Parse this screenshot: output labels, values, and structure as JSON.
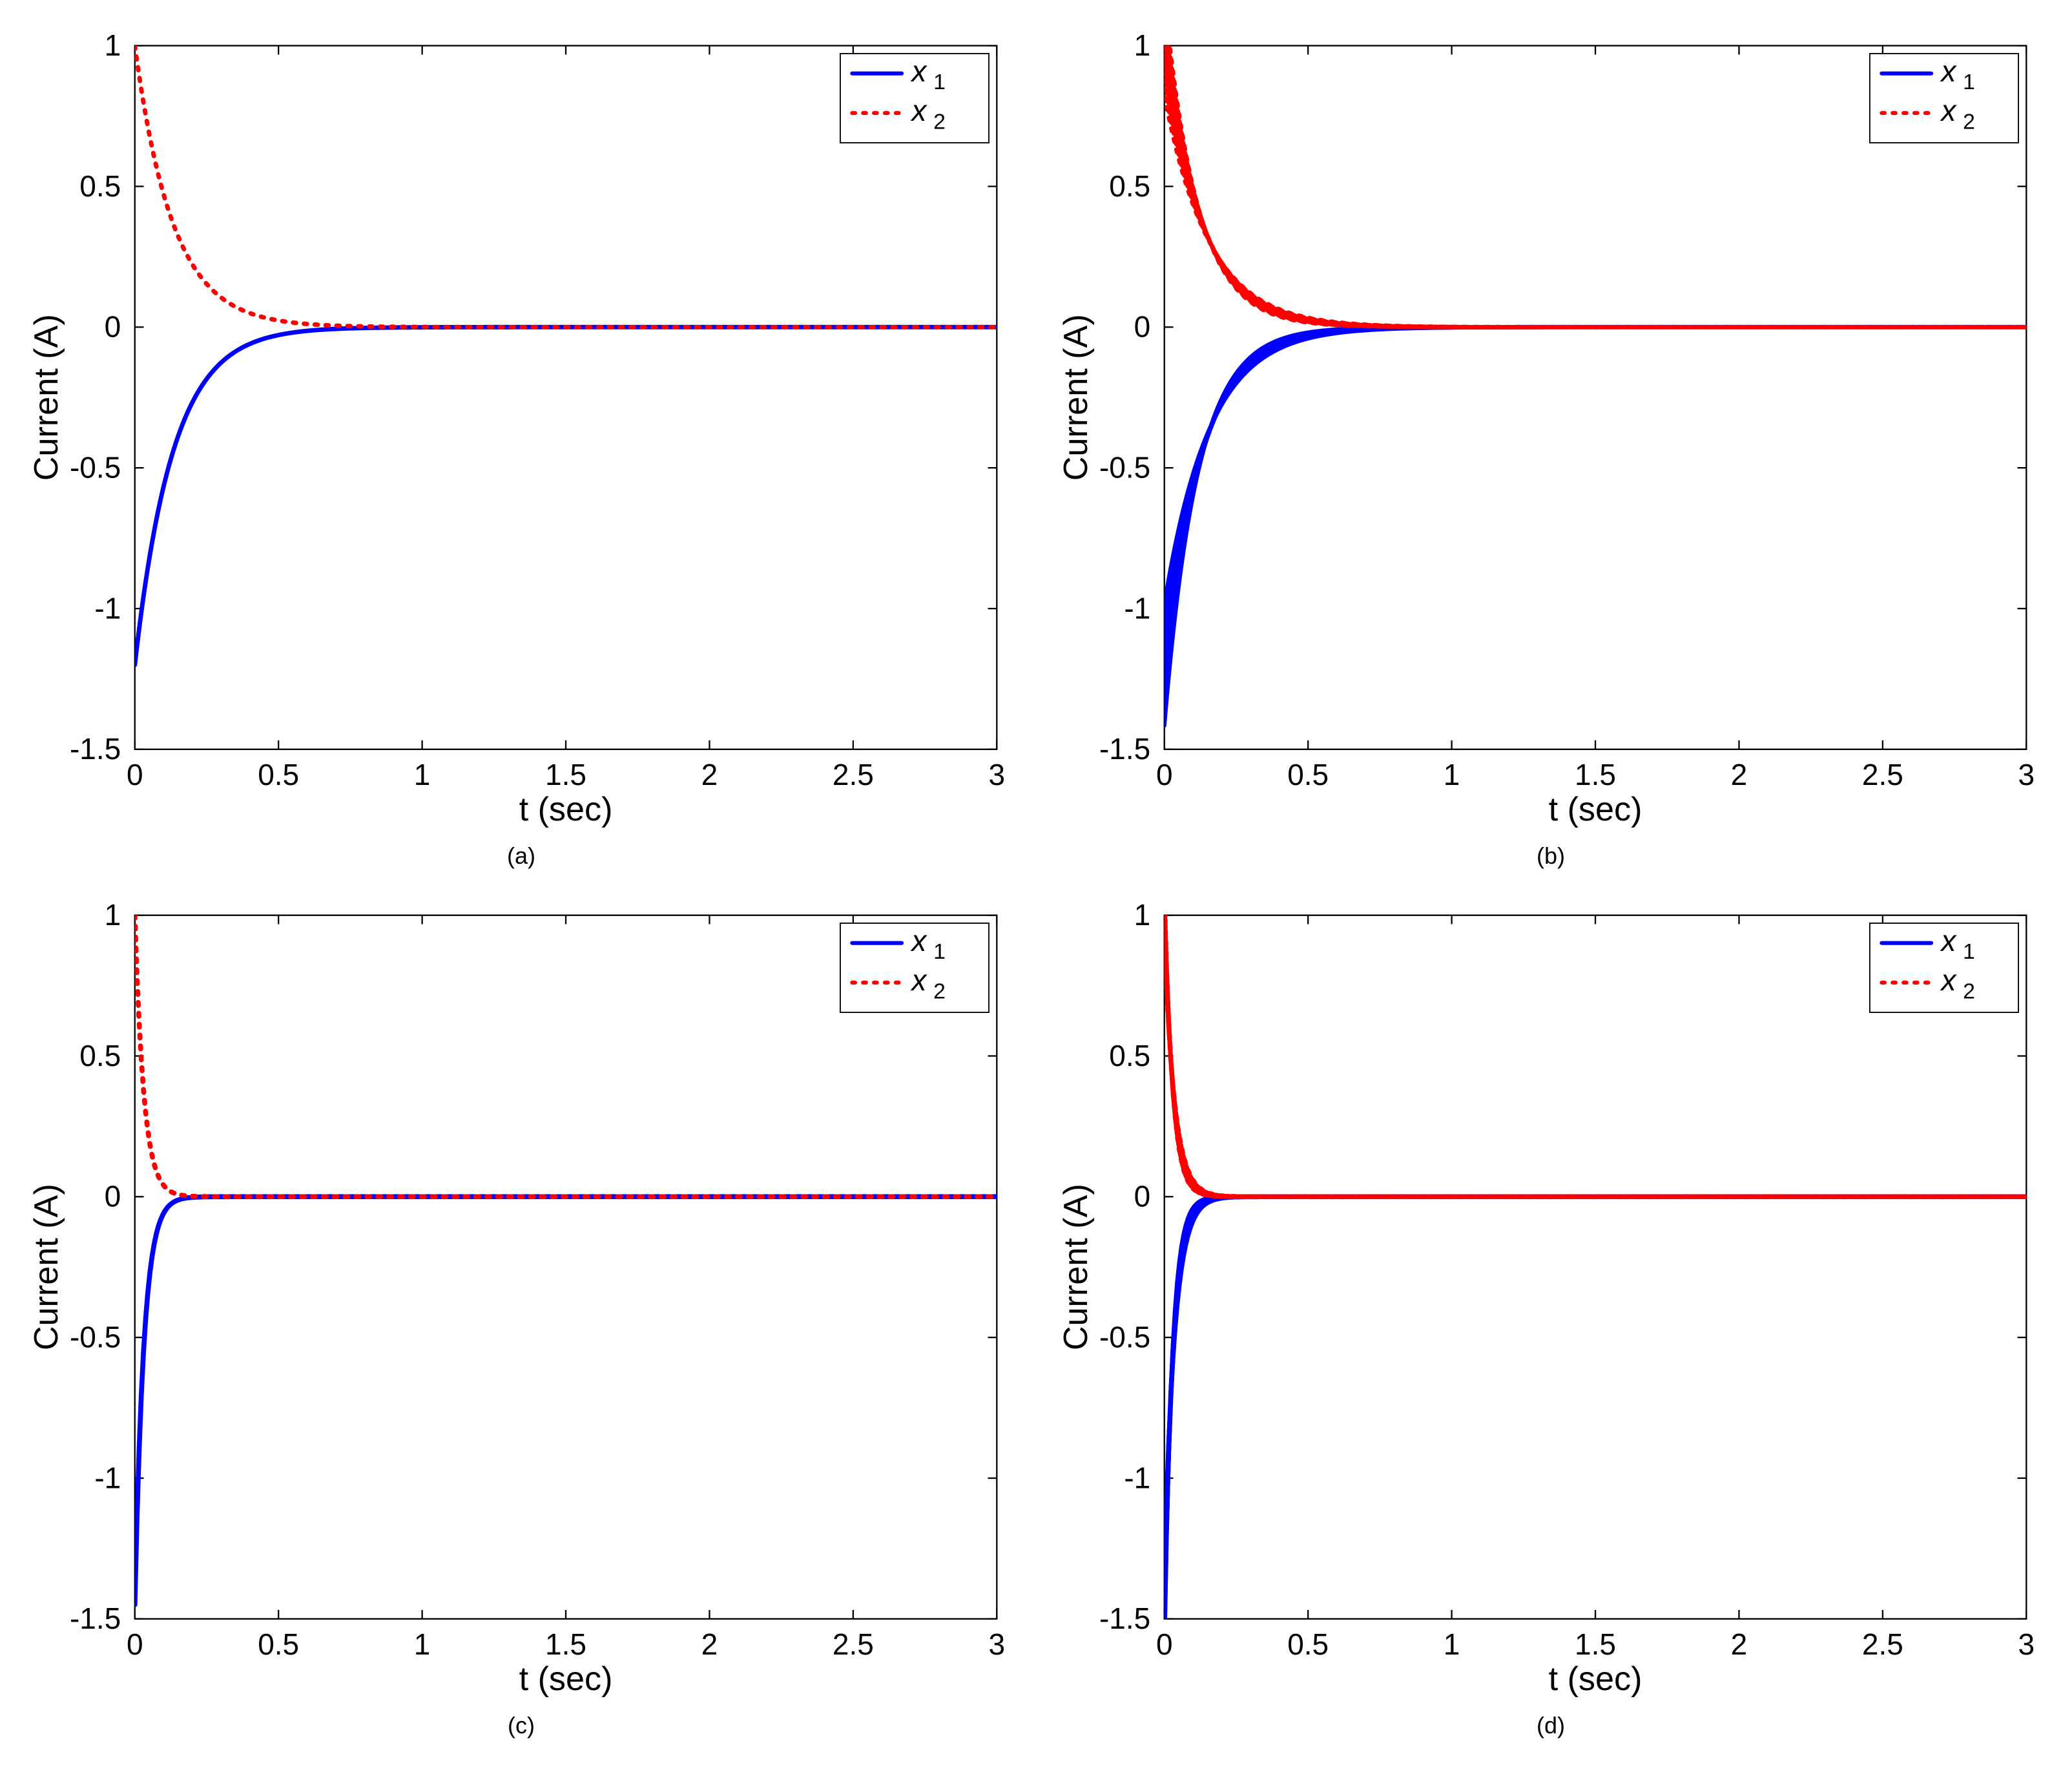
{
  "layout": {
    "cols": 2,
    "rows": 2,
    "background_color": "#ffffff"
  },
  "common": {
    "xlabel": "t (sec)",
    "ylabel": "Current (A)",
    "xlim": [
      0,
      3
    ],
    "ylim": [
      -1.5,
      1
    ],
    "xticks": [
      0,
      0.5,
      1,
      1.5,
      2,
      2.5,
      3
    ],
    "yticks": [
      -1.5,
      -1,
      -0.5,
      0,
      0.5,
      1
    ],
    "axis_color": "#000000",
    "axis_linewidth": 1.5,
    "tick_fontsize": 30,
    "label_fontsize": 34,
    "sublabel_fontsize": 36,
    "legend": {
      "position": "top-right",
      "border_color": "#000000",
      "background_color": "#ffffff",
      "fontsize": 30,
      "items": [
        {
          "label": "x",
          "sub": "1",
          "color": "#0000ff",
          "style": "solid",
          "linewidth": 4
        },
        {
          "label": "x",
          "sub": "2",
          "color": "#ff0000",
          "style": "dotted",
          "linewidth": 4
        }
      ]
    }
  },
  "panels": [
    {
      "id": "a",
      "sublabel": "(a)",
      "series": [
        {
          "name": "x1",
          "color": "#0000ff",
          "style": "solid",
          "linewidth": 4.5,
          "decay_rate": 7.5,
          "y0": -1.2,
          "thick_band": false
        },
        {
          "name": "x2",
          "color": "#ff0000",
          "style": "dotted",
          "linewidth": 4.5,
          "decay_rate": 7.5,
          "y0": 1.0,
          "thick_band": false
        }
      ]
    },
    {
      "id": "b",
      "sublabel": "(b)",
      "series": [
        {
          "name": "x1",
          "color": "#0000ff",
          "style": "solid",
          "linewidth": 4.5,
          "decay_rate": 7.5,
          "y0": -1.2,
          "thick_band": true,
          "band_scale": 0.18
        },
        {
          "name": "x2",
          "color": "#ff0000",
          "style": "dotted",
          "linewidth": 4.5,
          "decay_rate": 7.5,
          "y0": 1.0,
          "thick_band": true,
          "band_scale": 0.18
        }
      ]
    },
    {
      "id": "c",
      "sublabel": "(c)",
      "series": [
        {
          "name": "x1",
          "color": "#0000ff",
          "style": "solid",
          "linewidth": 5,
          "decay_rate": 32,
          "y0": -1.45,
          "thick_band": false
        },
        {
          "name": "x2",
          "color": "#ff0000",
          "style": "dotted",
          "linewidth": 5,
          "decay_rate": 32,
          "y0": 1.0,
          "thick_band": false
        }
      ]
    },
    {
      "id": "d",
      "sublabel": "(d)",
      "series": [
        {
          "name": "x1",
          "color": "#0000ff",
          "style": "solid",
          "linewidth": 5,
          "decay_rate": 32,
          "y0": -1.45,
          "thick_band": true,
          "band_scale": 0.1
        },
        {
          "name": "x2",
          "color": "#ff0000",
          "style": "dotted",
          "linewidth": 5,
          "decay_rate": 32,
          "y0": 1.0,
          "thick_band": true,
          "band_scale": 0.1
        }
      ]
    }
  ]
}
